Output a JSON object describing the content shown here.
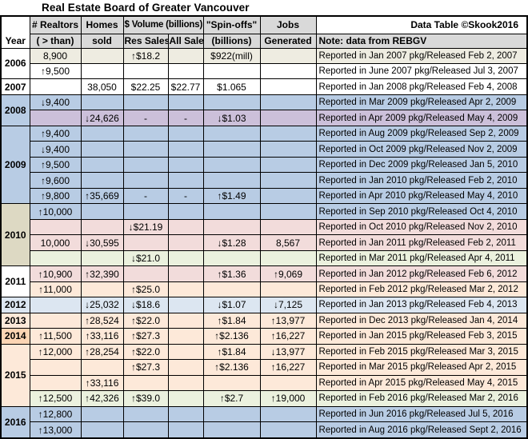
{
  "title": "Real Estate Board of Greater Vancouver",
  "credit": "Data Table ©Skook2016",
  "header": {
    "year": "Year",
    "realtors1": "# Realtors",
    "realtors2": "( > than)",
    "homes1": "Homes",
    "homes2": "sold",
    "volume": "$ Volume (billions)",
    "res": "Res Sales",
    "all": "All Sales",
    "spin1": "\"Spin-offs\"",
    "spin2": "(billions)",
    "jobs1": "Jobs",
    "jobs2": "Generated",
    "note": "Note: data from REBGV"
  },
  "chart_data": {
    "type": "table",
    "title": "Real Estate Board of Greater Vancouver",
    "columns": [
      "Year",
      "# Realtors ( > than)",
      "Homes sold",
      "$ Volume (billions) Res Sales",
      "$ Volume (billions) All Sales",
      "\"Spin-offs\" (billions)",
      "Jobs Generated",
      "Note: data from REBGV"
    ],
    "rows": [
      {
        "year": "2006",
        "year_span": 2,
        "year_bg": "#ffffff",
        "bg": "#eeece1",
        "realtors": "8,900",
        "homes": "",
        "res": "↑$18.2",
        "all": "",
        "spin": "$922(mill)",
        "jobs": "",
        "note": "Reported in Jan 2007 pkg/Released Feb 2, 2007"
      },
      {
        "bg": "#ffffff",
        "realtors": "↑9,500",
        "homes": "",
        "res": "",
        "all": "",
        "spin": "",
        "jobs": "",
        "note": "Reported in June 2007 pkg/Released Jul 3, 2007"
      },
      {
        "year": "2007",
        "year_span": 1,
        "year_bg": "#ffffff",
        "bg": "#ffffff",
        "realtors": "",
        "homes": "38,050",
        "res": "$22.25",
        "all": "$22.77",
        "spin": "$1.065",
        "jobs": "",
        "note": "Reported in Jan 2008 pkg/Released Feb 4, 2008"
      },
      {
        "year": "2008",
        "year_span": 2,
        "year_bg": "#b8cce4",
        "bg": "#b8cce4",
        "realtors": "↓9,400",
        "homes": "",
        "res": "",
        "all": "",
        "spin": "",
        "jobs": "",
        "note": "Reported in Mar 2009 pkg/Released Apr 2, 2009"
      },
      {
        "bg": "#ccc0da",
        "realtors": "",
        "homes": "↓24,626",
        "res": "-",
        "all": "-",
        "spin": "↓$1.03",
        "jobs": "",
        "note": "Reported in Apr 2009 pkg/Released May 4, 2009"
      },
      {
        "year": "2009",
        "year_span": 5,
        "year_bg": "#b8cce4",
        "bg": "#b8cce4",
        "realtors": "↑9,400",
        "homes": "",
        "res": "",
        "all": "",
        "spin": "",
        "jobs": "",
        "note": "Reported in Aug 2009 pkg/Released Sep 2, 2009"
      },
      {
        "bg": "#b8cce4",
        "realtors": "↓9,400",
        "homes": "",
        "res": "",
        "all": "",
        "spin": "",
        "jobs": "",
        "note": "Reported in Oct 2009 pkg/Released Nov 2, 2009"
      },
      {
        "bg": "#b8cce4",
        "realtors": "↑9,500",
        "homes": "",
        "res": "",
        "all": "",
        "spin": "",
        "jobs": "",
        "note": "Reported in Dec 2009 pkg/Released Jan 5, 2010"
      },
      {
        "bg": "#b8cce4",
        "realtors": "↑9,600",
        "homes": "",
        "res": "",
        "all": "",
        "spin": "",
        "jobs": "",
        "note": "Reported in Jan 2010 pkg/Released Feb 2, 2010"
      },
      {
        "bg": "#b8cce4",
        "realtors": "↑9,800",
        "homes": "↑35,669",
        "res": "-",
        "all": "-",
        "spin": "↑$1.49",
        "jobs": "",
        "note": "Reported in Apr 2010 pkg/Released May 4, 2010"
      },
      {
        "year": "2010",
        "year_span": 4,
        "year_bg": "#ddd9c3",
        "bg": "#b8cce4",
        "realtors": "↑10,000",
        "homes": "",
        "res": "",
        "all": "",
        "spin": "",
        "jobs": "",
        "note": "Reported in Sep 2010 pkg/Released Oct 4, 2010"
      },
      {
        "bg": "#f2dcdb",
        "realtors": "",
        "homes": "",
        "res": "↓$21.19",
        "all": "",
        "spin": "",
        "jobs": "",
        "note": "Reported in Oct 2010 pkg/Released Nov 2, 2010"
      },
      {
        "bg": "#f2dcdb",
        "realtors": "10,000",
        "homes": "↓30,595",
        "res": "",
        "all": "",
        "spin": "↓$1.28",
        "jobs": "8,567",
        "note": "Reported in Jan 2011 pkg/Released Feb 2, 2011"
      },
      {
        "bg": "#ebf1de",
        "realtors": "",
        "homes": "",
        "res": "↓$21.0",
        "all": "",
        "spin": "",
        "jobs": "",
        "note": "Reported in Mar 2011 pkg/Released Apr 4, 2011"
      },
      {
        "year": "2011",
        "year_span": 2,
        "year_bg": "#ffffff",
        "bg": "#f2dcdb",
        "realtors": "↑10,900",
        "homes": "↑32,390",
        "res": "",
        "all": "",
        "spin": "↑$1.36",
        "jobs": "↑9,069",
        "note": "Reported in Jan 2012 pkg/Released Feb 6, 2012"
      },
      {
        "bg": "#fde9d9",
        "realtors": "↑11,000",
        "homes": "",
        "res": "↑$25.0",
        "all": "",
        "spin": "",
        "jobs": "",
        "note": "Reported in Feb 2012 pkg/Released Mar 2, 2012"
      },
      {
        "year": "2012",
        "year_span": 1,
        "year_bg": "#dce6f1",
        "bg": "#dce6f1",
        "realtors": "",
        "homes": "↓25,032",
        "res": "↓$18.6",
        "all": "",
        "spin": "↓$1.07",
        "jobs": "↓7,125",
        "note": "Reported in Jan 2013 pkg/Released Feb 4, 2013"
      },
      {
        "year": "2013",
        "year_span": 1,
        "year_bg": "#fde9d9",
        "bg": "#fde9d9",
        "realtors": "",
        "homes": "↑28,524",
        "res": "↑$22.0",
        "all": "",
        "spin": "↑$1.84",
        "jobs": "↑13,977",
        "note": "Reported in Dec 2013 pkg/Released Jan 4, 2014"
      },
      {
        "year": "2014",
        "year_span": 1,
        "year_bg": "#fcd5b4",
        "bg": "#fde9d9",
        "realtors": "↑11,500",
        "homes": "↑33,116",
        "res": "↑$27.3",
        "all": "",
        "spin": "↑$2.136",
        "jobs": "↑16,227",
        "note": "Reported in Jan 2015 pkg/Released Feb 3, 2015"
      },
      {
        "year": "2015",
        "year_span": 4,
        "year_bg": "#fde9d9",
        "bg": "#fde9d9",
        "realtors": "↑12,000",
        "homes": "↑28,254",
        "res": "↑$22.0",
        "all": "",
        "spin": "↑$1.84",
        "jobs": "↓13,977",
        "note": "Reported in Feb 2015 pkg/Released Mar 3, 2015"
      },
      {
        "bg": "#fde9d9",
        "realtors": "",
        "homes": "",
        "res": "↑$27.3",
        "all": "",
        "spin": "↑$2.136",
        "jobs": "↑16,227",
        "note": "Reported in Mar 2015 pkg/Released Apr 2, 2015"
      },
      {
        "bg": "#fde9d9",
        "realtors": "",
        "homes": "↑33,116",
        "res": "",
        "all": "",
        "spin": "",
        "jobs": "",
        "note": "Reported in Apr 2015 pkg/Released May 4, 2015"
      },
      {
        "bg": "#ebf1de",
        "realtors": "↑12,500",
        "homes": "↑42,326",
        "res": "↑$39.0",
        "all": "",
        "spin": "↑$2.7",
        "jobs": "↑19,000",
        "note": "Reported in Feb 2016 pkg/Released Mar 2, 2016"
      },
      {
        "year": "2016",
        "year_span": 2,
        "year_bg": "#b8cce4",
        "bg": "#b8cce4",
        "realtors": "↑12,800",
        "homes": "",
        "res": "",
        "all": "",
        "spin": "",
        "jobs": "",
        "note": "Reported in Jun 2016 pkg/Released Jul 5, 2016"
      },
      {
        "bg": "#b8cce4",
        "realtors": "↑13,000",
        "homes": "",
        "res": "",
        "all": "",
        "spin": "",
        "jobs": "",
        "note": "Reported in Aug 2016 pkg/Released Sept 2, 2016"
      }
    ]
  }
}
